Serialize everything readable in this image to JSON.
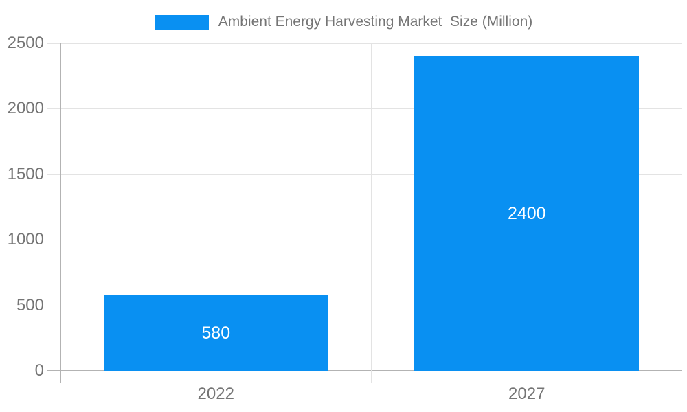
{
  "legend": {
    "label": "Ambient Energy Harvesting Market  Size (Million)"
  },
  "chart_data": {
    "type": "bar",
    "title": "Ambient Energy Harvesting Market  Size (Million)",
    "series": [
      {
        "name": "Ambient Energy Harvesting Market  Size (Million)",
        "values": [
          580,
          2400
        ]
      }
    ],
    "categories": [
      "2022",
      "2027"
    ],
    "value_labels": [
      "580",
      "2400"
    ],
    "xlabel": "",
    "ylabel": "",
    "ylim": [
      0,
      2500
    ],
    "yticks": [
      0,
      500,
      1000,
      1500,
      2000,
      2500
    ],
    "ytick_labels": [
      "0",
      "500",
      "1000",
      "1500",
      "2000",
      "2500"
    ],
    "grid": true,
    "legend_position": "top"
  },
  "colors": {
    "bar": "#0990f2",
    "grid": "#e3e3e3",
    "axis": "#b3b3b3",
    "label_text": "#757575",
    "value_text": "#ffffff",
    "background": "#ffffff"
  }
}
